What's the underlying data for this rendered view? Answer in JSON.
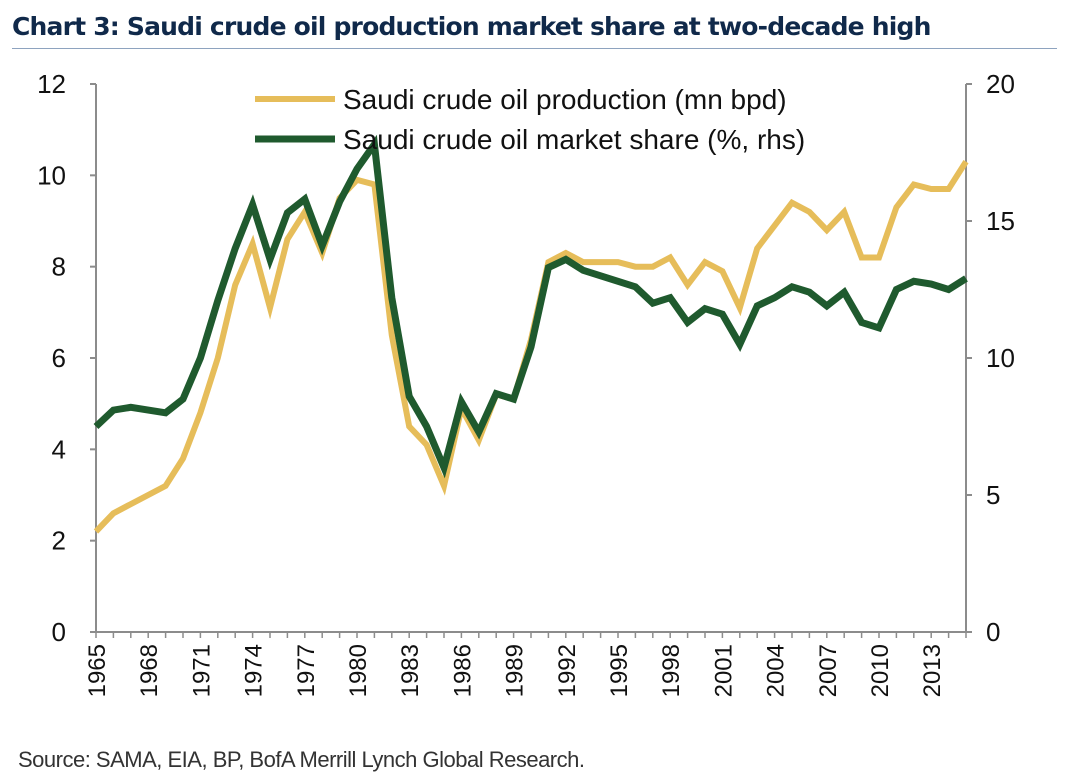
{
  "header": {
    "title": "Chart 3: Saudi crude oil production market share at two-decade high"
  },
  "footer": {
    "source": "Source: SAMA, EIA, BP, BofA Merrill Lynch Global Research."
  },
  "colors": {
    "production": "#e6bd5a",
    "share": "#1f5a2e",
    "axis": "#8c8c8c",
    "title": "#10294a"
  },
  "chart_data": {
    "type": "line",
    "title": "Chart 3: Saudi crude oil production market share at two-decade high",
    "xlabel": "",
    "ylabel": "",
    "y2label": "",
    "grid": false,
    "legend_position": "top-center",
    "x": [
      1965,
      1966,
      1967,
      1968,
      1969,
      1970,
      1971,
      1972,
      1973,
      1974,
      1975,
      1976,
      1977,
      1978,
      1979,
      1980,
      1981,
      1982,
      1983,
      1984,
      1985,
      1986,
      1987,
      1988,
      1989,
      1990,
      1991,
      1992,
      1993,
      1994,
      1995,
      1996,
      1997,
      1998,
      1999,
      2000,
      2001,
      2002,
      2003,
      2004,
      2005,
      2006,
      2007,
      2008,
      2009,
      2010,
      2011,
      2012,
      2013,
      2014,
      2015
    ],
    "x_tick_labels": [
      "1965",
      "1968",
      "1971",
      "1974",
      "1977",
      "1980",
      "1983",
      "1986",
      "1989",
      "1992",
      "1995",
      "1998",
      "2001",
      "2004",
      "2007",
      "2010",
      "2013"
    ],
    "ylim": [
      0,
      12
    ],
    "y_ticks": [
      0,
      2,
      4,
      6,
      8,
      10,
      12
    ],
    "y2lim": [
      0,
      20
    ],
    "y2_ticks": [
      0,
      5,
      10,
      15,
      20
    ],
    "series": [
      {
        "name": "Saudi crude oil production (mn bpd)",
        "axis": "left",
        "values": [
          2.2,
          2.6,
          2.8,
          3.0,
          3.2,
          3.8,
          4.8,
          6.0,
          7.6,
          8.5,
          7.1,
          8.6,
          9.2,
          8.3,
          9.5,
          9.9,
          9.8,
          6.5,
          4.5,
          4.1,
          3.2,
          4.9,
          4.2,
          5.2,
          5.1,
          6.4,
          8.1,
          8.3,
          8.1,
          8.1,
          8.1,
          8.0,
          8.0,
          8.2,
          7.6,
          8.1,
          7.9,
          7.1,
          8.4,
          8.9,
          9.4,
          9.2,
          8.8,
          9.2,
          8.2,
          8.2,
          9.3,
          9.8,
          9.7,
          9.7,
          10.3
        ]
      },
      {
        "name": "Saudi crude oil market share (%, rhs)",
        "axis": "right",
        "values": [
          7.5,
          8.1,
          8.2,
          8.1,
          8.0,
          8.5,
          10.0,
          12.1,
          14.0,
          15.6,
          13.6,
          15.3,
          15.8,
          14.1,
          15.7,
          16.9,
          17.8,
          12.2,
          8.6,
          7.5,
          6.0,
          8.4,
          7.3,
          8.7,
          8.5,
          10.4,
          13.3,
          13.6,
          13.2,
          13.0,
          12.8,
          12.6,
          12.0,
          12.2,
          11.3,
          11.8,
          11.6,
          10.5,
          11.9,
          12.2,
          12.6,
          12.4,
          11.9,
          12.4,
          11.3,
          11.1,
          12.5,
          12.8,
          12.7,
          12.5,
          12.9
        ]
      }
    ]
  }
}
